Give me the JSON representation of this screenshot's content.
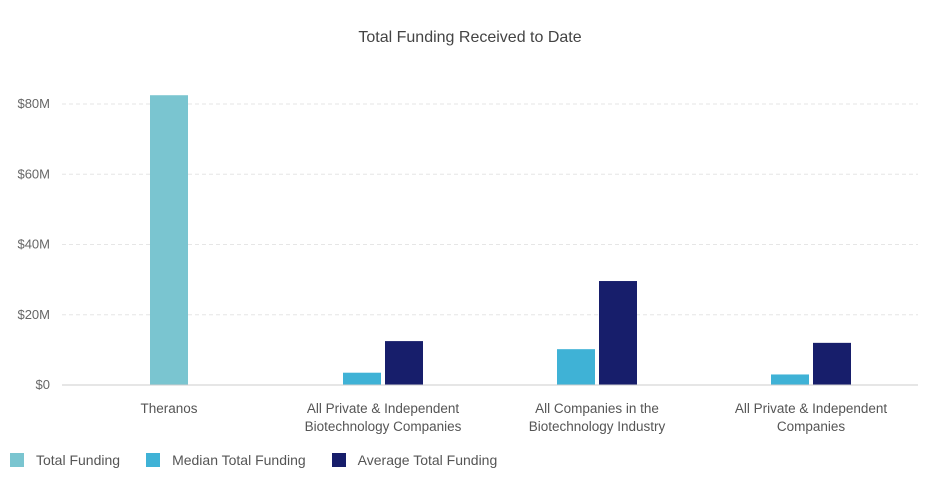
{
  "chart_data": {
    "type": "bar",
    "title": "Total Funding Received to Date",
    "categories": [
      [
        "Theranos"
      ],
      [
        "All Private & Independent",
        "Biotechnology Companies"
      ],
      [
        "All Companies in the",
        "Biotechnology Industry"
      ],
      [
        "All Private & Independent",
        "Companies"
      ]
    ],
    "series": [
      {
        "name": "Total Funding",
        "color": "#7ac5d0",
        "values": [
          82.5,
          null,
          null,
          null
        ]
      },
      {
        "name": "Median Total Funding",
        "color": "#3fb2d6",
        "values": [
          null,
          3.5,
          10.2,
          3.0
        ]
      },
      {
        "name": "Average Total Funding",
        "color": "#171e6b",
        "values": [
          null,
          12.5,
          29.6,
          12.0
        ]
      }
    ],
    "y_ticks": [
      "$0",
      "$20M",
      "$40M",
      "$60M",
      "$80M"
    ],
    "y_tick_values": [
      0,
      20,
      40,
      60,
      80
    ],
    "ylim": [
      0,
      80
    ],
    "grid": true,
    "legend_position": "bottom-left"
  }
}
